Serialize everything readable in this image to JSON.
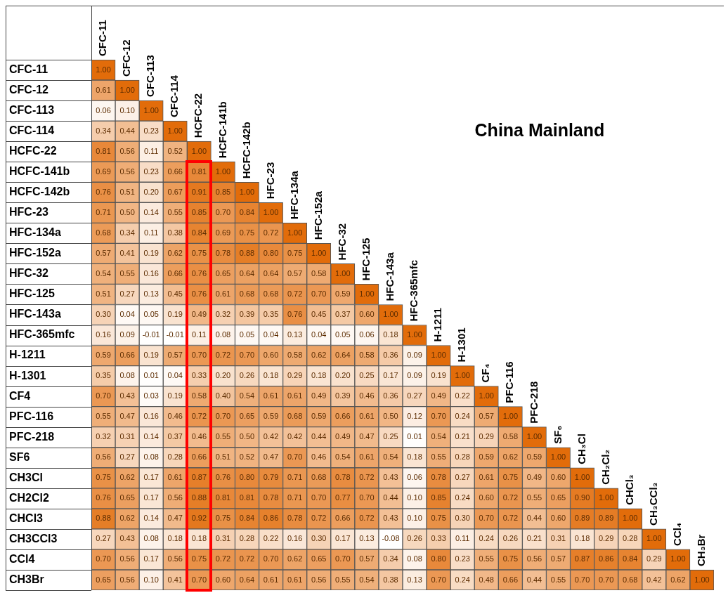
{
  "chart_data": {
    "type": "heatmap",
    "title": "China Mainland",
    "cell_labels": [
      [
        "1.00",
        null,
        null,
        null,
        null,
        null,
        null,
        null,
        null,
        null,
        null,
        null,
        null,
        null,
        null,
        null,
        null,
        null,
        null,
        null,
        null,
        null,
        null,
        null,
        null,
        null
      ],
      [
        "0.61",
        "1.00",
        null,
        null,
        null,
        null,
        null,
        null,
        null,
        null,
        null,
        null,
        null,
        null,
        null,
        null,
        null,
        null,
        null,
        null,
        null,
        null,
        null,
        null,
        null,
        null
      ],
      [
        "0.06",
        "0.10",
        "1.00",
        null,
        null,
        null,
        null,
        null,
        null,
        null,
        null,
        null,
        null,
        null,
        null,
        null,
        null,
        null,
        null,
        null,
        null,
        null,
        null,
        null,
        null,
        null
      ],
      [
        "0.34",
        "0.44",
        "0.23",
        "1.00",
        null,
        null,
        null,
        null,
        null,
        null,
        null,
        null,
        null,
        null,
        null,
        null,
        null,
        null,
        null,
        null,
        null,
        null,
        null,
        null,
        null,
        null
      ],
      [
        "0.81",
        "0.56",
        "0.11",
        "0.52",
        "1.00",
        null,
        null,
        null,
        null,
        null,
        null,
        null,
        null,
        null,
        null,
        null,
        null,
        null,
        null,
        null,
        null,
        null,
        null,
        null,
        null,
        null
      ],
      [
        "0.69",
        "0.56",
        "0.23",
        "0.66",
        "0.81",
        "1.00",
        null,
        null,
        null,
        null,
        null,
        null,
        null,
        null,
        null,
        null,
        null,
        null,
        null,
        null,
        null,
        null,
        null,
        null,
        null,
        null
      ],
      [
        "0.76",
        "0.51",
        "0.20",
        "0.67",
        "0.91",
        "0.85",
        "1.00",
        null,
        null,
        null,
        null,
        null,
        null,
        null,
        null,
        null,
        null,
        null,
        null,
        null,
        null,
        null,
        null,
        null,
        null,
        null
      ],
      [
        "0.71",
        "0.50",
        "0.14",
        "0.55",
        "0.85",
        "0.70",
        "0.84",
        "1.00",
        null,
        null,
        null,
        null,
        null,
        null,
        null,
        null,
        null,
        null,
        null,
        null,
        null,
        null,
        null,
        null,
        null,
        null
      ],
      [
        "0.68",
        "0.34",
        "0.11",
        "0.38",
        "0.84",
        "0.69",
        "0.75",
        "0.72",
        "1.00",
        null,
        null,
        null,
        null,
        null,
        null,
        null,
        null,
        null,
        null,
        null,
        null,
        null,
        null,
        null,
        null,
        null
      ],
      [
        "0.57",
        "0.41",
        "0.19",
        "0.62",
        "0.75",
        "0.78",
        "0.88",
        "0.80",
        "0.75",
        "1.00",
        null,
        null,
        null,
        null,
        null,
        null,
        null,
        null,
        null,
        null,
        null,
        null,
        null,
        null,
        null,
        null
      ],
      [
        "0.54",
        "0.55",
        "0.16",
        "0.66",
        "0.76",
        "0.65",
        "0.64",
        "0.64",
        "0.57",
        "0.58",
        "1.00",
        null,
        null,
        null,
        null,
        null,
        null,
        null,
        null,
        null,
        null,
        null,
        null,
        null,
        null,
        null
      ],
      [
        "0.51",
        "0.27",
        "0.13",
        "0.45",
        "0.76",
        "0.61",
        "0.68",
        "0.68",
        "0.72",
        "0.70",
        "0.59",
        "1.00",
        null,
        null,
        null,
        null,
        null,
        null,
        null,
        null,
        null,
        null,
        null,
        null,
        null,
        null
      ],
      [
        "0.30",
        "0.04",
        "0.05",
        "0.19",
        "0.49",
        "0.32",
        "0.39",
        "0.35",
        "0.76",
        "0.45",
        "0.37",
        "0.60",
        "1.00",
        null,
        null,
        null,
        null,
        null,
        null,
        null,
        null,
        null,
        null,
        null,
        null,
        null
      ],
      [
        "0.16",
        "0.09",
        "-0.01",
        "-0.01",
        "0.11",
        "0.08",
        "0.05",
        "0.04",
        "0.13",
        "0.04",
        "0.05",
        "0.06",
        "0.18",
        "1.00",
        null,
        null,
        null,
        null,
        null,
        null,
        null,
        null,
        null,
        null,
        null,
        null
      ],
      [
        "0.59",
        "0.66",
        "0.19",
        "0.57",
        "0.70",
        "0.72",
        "0.70",
        "0.60",
        "0.58",
        "0.62",
        "0.64",
        "0.58",
        "0.36",
        "0.09",
        "1.00",
        null,
        null,
        null,
        null,
        null,
        null,
        null,
        null,
        null,
        null,
        null
      ],
      [
        "0.35",
        "0.08",
        "0.01",
        "0.04",
        "0.33",
        "0.20",
        "0.26",
        "0.18",
        "0.29",
        "0.18",
        "0.20",
        "0.25",
        "0.17",
        "0.09",
        "0.19",
        "1.00",
        null,
        null,
        null,
        null,
        null,
        null,
        null,
        null,
        null,
        null
      ],
      [
        "0.70",
        "0.43",
        "0.03",
        "0.19",
        "0.58",
        "0.40",
        "0.54",
        "0.61",
        "0.61",
        "0.49",
        "0.39",
        "0.46",
        "0.36",
        "0.27",
        "0.49",
        "0.22",
        "1.00",
        null,
        null,
        null,
        null,
        null,
        null,
        null,
        null,
        null
      ],
      [
        "0.55",
        "0.47",
        "0.16",
        "0.46",
        "0.72",
        "0.70",
        "0.65",
        "0.59",
        "0.68",
        "0.59",
        "0.66",
        "0.61",
        "0.50",
        "0.12",
        "0.70",
        "0.24",
        "0.57",
        "1.00",
        null,
        null,
        null,
        null,
        null,
        null,
        null,
        null
      ],
      [
        "0.32",
        "0.31",
        "0.14",
        "0.37",
        "0.46",
        "0.55",
        "0.50",
        "0.42",
        "0.42",
        "0.44",
        "0.49",
        "0.47",
        "0.25",
        "0.01",
        "0.54",
        "0.21",
        "0.29",
        "0.58",
        "1.00",
        null,
        null,
        null,
        null,
        null,
        null,
        null
      ],
      [
        "0.56",
        "0.27",
        "0.08",
        "0.28",
        "0.66",
        "0.51",
        "0.52",
        "0.47",
        "0.70",
        "0.46",
        "0.54",
        "0.61",
        "0.54",
        "0.18",
        "0.55",
        "0.28",
        "0.59",
        "0.62",
        "0.59",
        "1.00",
        null,
        null,
        null,
        null,
        null,
        null
      ],
      [
        "0.75",
        "0.62",
        "0.17",
        "0.61",
        "0.87",
        "0.76",
        "0.80",
        "0.79",
        "0.71",
        "0.68",
        "0.78",
        "0.72",
        "0.43",
        "0.06",
        "0.78",
        "0.27",
        "0.61",
        "0.75",
        "0.49",
        "0.60",
        "1.00",
        null,
        null,
        null,
        null,
        null
      ],
      [
        "0.76",
        "0.65",
        "0.17",
        "0.56",
        "0.88",
        "0.81",
        "0.81",
        "0.78",
        "0.71",
        "0.70",
        "0.77",
        "0.70",
        "0.44",
        "0.10",
        "0.85",
        "0.24",
        "0.60",
        "0.72",
        "0.55",
        "0.65",
        "0.90",
        "1.00",
        null,
        null,
        null,
        null
      ],
      [
        "0.88",
        "0.62",
        "0.14",
        "0.47",
        "0.92",
        "0.75",
        "0.84",
        "0.86",
        "0.78",
        "0.72",
        "0.66",
        "0.72",
        "0.43",
        "0.10",
        "0.75",
        "0.30",
        "0.70",
        "0.72",
        "0.44",
        "0.60",
        "0.89",
        "0.89",
        "1.00",
        null,
        null,
        null
      ],
      [
        "0.27",
        "0.43",
        "0.08",
        "0.18",
        "0.18",
        "0.31",
        "0.28",
        "0.22",
        "0.16",
        "0.30",
        "0.17",
        "0.13",
        "-0.08",
        "0.26",
        "0.33",
        "0.11",
        "0.24",
        "0.26",
        "0.21",
        "0.31",
        "0.18",
        "0.29",
        "0.28",
        "1.00",
        null,
        null
      ],
      [
        "0.70",
        "0.56",
        "0.17",
        "0.56",
        "0.75",
        "0.72",
        "0.72",
        "0.70",
        "0.62",
        "0.65",
        "0.70",
        "0.57",
        "0.34",
        "0.08",
        "0.80",
        "0.23",
        "0.55",
        "0.75",
        "0.56",
        "0.57",
        "0.87",
        "0.86",
        "0.84",
        "0.29",
        "1.00",
        null
      ],
      [
        "0.65",
        "0.56",
        "0.10",
        "0.41",
        "0.70",
        "0.60",
        "0.64",
        "0.61",
        "0.61",
        "0.56",
        "0.55",
        "0.54",
        "0.38",
        "0.13",
        "0.70",
        "0.24",
        "0.48",
        "0.66",
        "0.44",
        "0.55",
        "0.70",
        "0.70",
        "0.68",
        "0.42",
        "0.62",
        "1.00"
      ]
    ],
    "categories": [
      "CFC-11",
      "CFC-12",
      "CFC-113",
      "CFC-114",
      "HCFC-22",
      "HCFC-141b",
      "HCFC-142b",
      "HFC-23",
      "HFC-134a",
      "HFC-152a",
      "HFC-32",
      "HFC-125",
      "HFC-143a",
      "HFC-365mfc",
      "H-1211",
      "H-1301",
      "CF₄",
      "PFC-116",
      "PFC-218",
      "SF₆",
      "CH₃Cl",
      "CH₂Cl₂",
      "CHCl₃",
      "CH₃CCl₃",
      "CCl₄",
      "CH₃Br"
    ],
    "y_categories": [
      "CFC-11",
      "CFC-12",
      "CFC-113",
      "CFC-114",
      "HCFC-22",
      "HCFC-141b",
      "HCFC-142b",
      "HFC-23",
      "HFC-134a",
      "HFC-152a",
      "HFC-32",
      "HFC-125",
      "HFC-143a",
      "HFC-365mfc",
      "H-1211",
      "H-1301",
      "CF4",
      "PFC-116",
      "PFC-218",
      "SF6",
      "CH3Cl",
      "CH2Cl2",
      "CHCl3",
      "CH3CCl3",
      "CCl4",
      "CH3Br"
    ],
    "cells": [
      [
        1.0,
        null,
        null,
        null,
        null,
        null,
        null,
        null,
        null,
        null,
        null,
        null,
        null,
        null,
        null,
        null,
        null,
        null,
        null,
        null,
        null,
        null,
        null,
        null,
        null,
        null
      ],
      [
        0.61,
        1.0,
        null,
        null,
        null,
        null,
        null,
        null,
        null,
        null,
        null,
        null,
        null,
        null,
        null,
        null,
        null,
        null,
        null,
        null,
        null,
        null,
        null,
        null,
        null,
        null
      ],
      [
        0.06,
        0.1,
        1.0,
        null,
        null,
        null,
        null,
        null,
        null,
        null,
        null,
        null,
        null,
        null,
        null,
        null,
        null,
        null,
        null,
        null,
        null,
        null,
        null,
        null,
        null,
        null
      ],
      [
        0.34,
        0.44,
        0.23,
        1.0,
        null,
        null,
        null,
        null,
        null,
        null,
        null,
        null,
        null,
        null,
        null,
        null,
        null,
        null,
        null,
        null,
        null,
        null,
        null,
        null,
        null,
        null
      ],
      [
        0.81,
        0.56,
        0.11,
        0.52,
        1.0,
        null,
        null,
        null,
        null,
        null,
        null,
        null,
        null,
        null,
        null,
        null,
        null,
        null,
        null,
        null,
        null,
        null,
        null,
        null,
        null,
        null
      ],
      [
        0.69,
        0.56,
        0.23,
        0.66,
        0.81,
        1.0,
        null,
        null,
        null,
        null,
        null,
        null,
        null,
        null,
        null,
        null,
        null,
        null,
        null,
        null,
        null,
        null,
        null,
        null,
        null,
        null
      ],
      [
        0.76,
        0.51,
        0.2,
        0.67,
        0.91,
        0.85,
        1.0,
        null,
        null,
        null,
        null,
        null,
        null,
        null,
        null,
        null,
        null,
        null,
        null,
        null,
        null,
        null,
        null,
        null,
        null,
        null
      ],
      [
        0.71,
        0.5,
        0.14,
        0.55,
        0.85,
        0.7,
        0.84,
        1.0,
        null,
        null,
        null,
        null,
        null,
        null,
        null,
        null,
        null,
        null,
        null,
        null,
        null,
        null,
        null,
        null,
        null,
        null
      ],
      [
        0.68,
        0.34,
        0.11,
        0.38,
        0.84,
        0.69,
        0.75,
        0.72,
        1.0,
        null,
        null,
        null,
        null,
        null,
        null,
        null,
        null,
        null,
        null,
        null,
        null,
        null,
        null,
        null,
        null,
        null
      ],
      [
        0.57,
        0.41,
        0.19,
        0.62,
        0.75,
        0.78,
        0.88,
        0.8,
        0.75,
        1.0,
        null,
        null,
        null,
        null,
        null,
        null,
        null,
        null,
        null,
        null,
        null,
        null,
        null,
        null,
        null,
        null
      ],
      [
        0.54,
        0.55,
        0.16,
        0.66,
        0.76,
        0.65,
        0.64,
        0.64,
        0.57,
        0.58,
        1.0,
        null,
        null,
        null,
        null,
        null,
        null,
        null,
        null,
        null,
        null,
        null,
        null,
        null,
        null,
        null
      ],
      [
        0.51,
        0.27,
        0.13,
        0.45,
        0.76,
        0.61,
        0.68,
        0.68,
        0.72,
        0.7,
        0.59,
        1.0,
        null,
        null,
        null,
        null,
        null,
        null,
        null,
        null,
        null,
        null,
        null,
        null,
        null,
        null
      ],
      [
        0.3,
        0.04,
        0.05,
        0.19,
        0.49,
        0.32,
        0.39,
        0.35,
        0.76,
        0.45,
        0.37,
        0.6,
        1.0,
        null,
        null,
        null,
        null,
        null,
        null,
        null,
        null,
        null,
        null,
        null,
        null,
        null
      ],
      [
        0.16,
        0.09,
        -0.01,
        -0.01,
        0.11,
        0.08,
        0.05,
        0.04,
        0.13,
        0.04,
        0.05,
        0.06,
        0.18,
        1.0,
        null,
        null,
        null,
        null,
        null,
        null,
        null,
        null,
        null,
        null,
        null,
        null
      ],
      [
        0.59,
        0.66,
        0.19,
        0.57,
        0.7,
        0.72,
        0.7,
        0.6,
        0.58,
        0.62,
        0.64,
        0.58,
        0.36,
        0.09,
        1.0,
        null,
        null,
        null,
        null,
        null,
        null,
        null,
        null,
        null,
        null,
        null
      ],
      [
        0.35,
        0.08,
        0.01,
        0.04,
        0.33,
        0.2,
        0.26,
        0.18,
        0.29,
        0.18,
        0.2,
        0.25,
        0.17,
        0.09,
        0.19,
        1.0,
        null,
        null,
        null,
        null,
        null,
        null,
        null,
        null,
        null,
        null
      ],
      [
        0.7,
        0.43,
        0.03,
        0.19,
        0.58,
        0.4,
        0.54,
        0.61,
        0.61,
        0.49,
        0.39,
        0.46,
        0.36,
        0.27,
        0.49,
        0.22,
        1.0,
        null,
        null,
        null,
        null,
        null,
        null,
        null,
        null,
        null
      ],
      [
        0.55,
        0.47,
        0.16,
        0.46,
        0.72,
        0.7,
        0.65,
        0.59,
        0.68,
        0.59,
        0.66,
        0.61,
        0.5,
        0.12,
        0.7,
        0.24,
        0.57,
        1.0,
        null,
        null,
        null,
        null,
        null,
        null,
        null,
        null
      ],
      [
        0.32,
        0.31,
        0.14,
        0.37,
        0.46,
        0.55,
        0.5,
        0.42,
        0.42,
        0.44,
        0.49,
        0.47,
        0.25,
        0.01,
        0.54,
        0.21,
        0.29,
        0.58,
        1.0,
        null,
        null,
        null,
        null,
        null,
        null,
        null
      ],
      [
        0.56,
        0.27,
        0.08,
        0.28,
        0.66,
        0.51,
        0.52,
        0.47,
        0.7,
        0.46,
        0.54,
        0.61,
        0.54,
        0.18,
        0.55,
        0.28,
        0.59,
        0.62,
        0.59,
        1.0,
        null,
        null,
        null,
        null,
        null,
        null
      ],
      [
        0.75,
        0.62,
        0.17,
        0.61,
        0.87,
        0.76,
        0.8,
        0.79,
        0.71,
        0.68,
        0.78,
        0.72,
        0.43,
        0.06,
        0.78,
        0.27,
        0.61,
        0.75,
        0.49,
        0.6,
        1.0,
        null,
        null,
        null,
        null,
        null
      ],
      [
        0.76,
        0.65,
        0.17,
        0.56,
        0.88,
        0.81,
        0.81,
        0.78,
        0.71,
        0.7,
        0.77,
        0.7,
        0.44,
        0.1,
        0.85,
        0.24,
        0.6,
        0.72,
        0.55,
        0.65,
        0.9,
        1.0,
        null,
        null,
        null,
        null
      ],
      [
        0.88,
        0.62,
        0.14,
        0.47,
        0.92,
        0.75,
        0.84,
        0.86,
        0.78,
        0.72,
        0.66,
        0.72,
        0.43,
        0.1,
        0.75,
        0.3,
        0.7,
        0.72,
        0.44,
        0.6,
        0.89,
        0.89,
        1.0,
        null,
        null,
        null
      ],
      [
        0.27,
        0.43,
        0.08,
        0.18,
        0.18,
        0.31,
        0.28,
        0.22,
        0.16,
        0.3,
        0.17,
        0.13,
        -0.08,
        0.26,
        0.33,
        0.11,
        0.24,
        0.26,
        0.21,
        0.31,
        0.18,
        0.29,
        0.28,
        1.0,
        null,
        null
      ],
      [
        0.7,
        0.56,
        0.17,
        0.56,
        0.75,
        0.72,
        0.72,
        0.7,
        0.62,
        0.65,
        0.7,
        0.57,
        0.34,
        0.08,
        0.8,
        0.23,
        0.55,
        0.75,
        0.56,
        0.57,
        0.87,
        0.86,
        0.84,
        0.29,
        1.0,
        null
      ],
      [
        0.65,
        0.56,
        0.1,
        0.41,
        0.7,
        0.6,
        0.64,
        0.61,
        0.61,
        0.56,
        0.55,
        0.54,
        0.38,
        0.13,
        0.7,
        0.24,
        0.48,
        0.66,
        0.44,
        0.55,
        0.7,
        0.7,
        0.68,
        0.42,
        0.62,
        1.0
      ]
    ]
  }
}
